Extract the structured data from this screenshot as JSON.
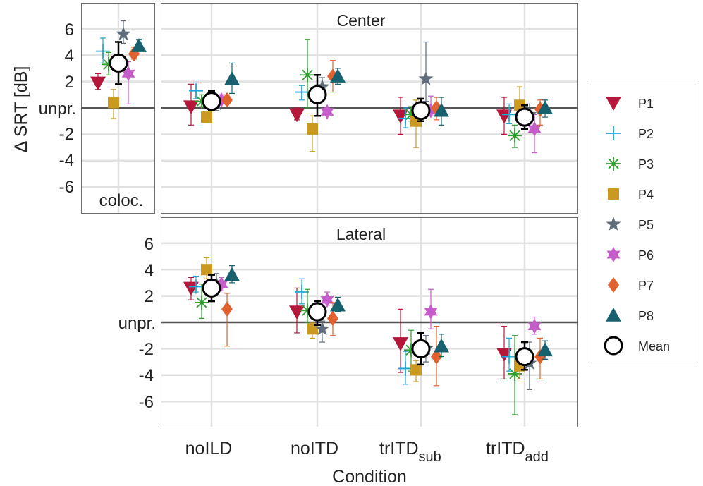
{
  "chart_data": [
    {
      "type": "scatter",
      "panel": "coloc",
      "categories": [
        "coloc."
      ],
      "ylabel": "Δ SRT [dB]",
      "ylim": [
        -7.8,
        7.8
      ],
      "yticks": [
        "6",
        "4",
        "2",
        "unpr.",
        "-2",
        "-4",
        "-6"
      ],
      "annotation": "coloc.",
      "series": [
        {
          "name": "P1",
          "values": [
            1.9
          ],
          "err": [
            [
              1.4,
              2.6
            ]
          ]
        },
        {
          "name": "P2",
          "values": [
            4.3
          ],
          "err": [
            [
              3.4,
              5.3
            ]
          ]
        },
        {
          "name": "P3",
          "values": [
            3.3
          ],
          "err": [
            [
              2.5,
              4.2
            ]
          ]
        },
        {
          "name": "P4",
          "values": [
            0.4
          ],
          "err": [
            [
              -0.8,
              1.4
            ]
          ]
        },
        {
          "name": "P5",
          "values": [
            5.6
          ],
          "err": [
            [
              4.9,
              6.6
            ]
          ]
        },
        {
          "name": "P6",
          "values": [
            2.6
          ],
          "err": [
            [
              0.3,
              3.5
            ]
          ]
        },
        {
          "name": "P7",
          "values": [
            4.1
          ],
          "err": [
            [
              3.7,
              4.6
            ]
          ]
        },
        {
          "name": "P8",
          "values": [
            4.7
          ],
          "err": [
            [
              4.3,
              5.2
            ]
          ]
        },
        {
          "name": "Mean",
          "values": [
            3.4
          ],
          "err": [
            [
              1.8,
              5.0
            ]
          ]
        }
      ]
    },
    {
      "type": "scatter",
      "panel": "center",
      "title": "Center",
      "categories": [
        "noILD",
        "noITD",
        "trITD_sub",
        "trITD_add"
      ],
      "ylim": [
        -7.8,
        7.8
      ],
      "series": [
        {
          "name": "P1",
          "values": [
            0.1,
            -0.5,
            -0.6,
            -0.6
          ],
          "err": [
            [
              -1.3,
              1.8
            ],
            [
              -0.9,
              0.0
            ],
            [
              -2.0,
              0.8
            ],
            [
              -2.0,
              0.8
            ]
          ]
        },
        {
          "name": "P2",
          "values": [
            1.3,
            1.2,
            -0.8,
            -0.5
          ],
          "err": [
            [
              0.7,
              1.9
            ],
            [
              0.6,
              1.7
            ],
            [
              -1.5,
              0.0
            ],
            [
              -1.2,
              0.3
            ]
          ]
        },
        {
          "name": "P3",
          "values": [
            0.5,
            2.5,
            -0.5,
            -2.1
          ],
          "err": [
            [
              0.1,
              1.0
            ],
            [
              0.0,
              5.2
            ],
            [
              -1.0,
              0.1
            ],
            [
              -3.0,
              -1.3
            ]
          ]
        },
        {
          "name": "P4",
          "values": [
            -0.7,
            -1.6,
            -1.0,
            0.2
          ],
          "err": [
            [
              -1.0,
              -0.4
            ],
            [
              -3.3,
              -0.6
            ],
            [
              -3.0,
              0.6
            ],
            [
              -0.5,
              1.6
            ]
          ]
        },
        {
          "name": "P5",
          "values": [
            0.3,
            1.6,
            2.2,
            -0.5
          ],
          "err": [
            [
              -0.2,
              0.9
            ],
            [
              1.0,
              2.3
            ],
            [
              0.5,
              5.0
            ],
            [
              -0.9,
              0.3
            ]
          ]
        },
        {
          "name": "P6",
          "values": [
            0.6,
            -0.3,
            -0.2,
            -1.6
          ],
          "err": [
            [
              0.3,
              1.0
            ],
            [
              -0.5,
              0.0
            ],
            [
              -0.6,
              0.9
            ],
            [
              -3.4,
              -0.5
            ]
          ]
        },
        {
          "name": "P7",
          "values": [
            0.6,
            2.4,
            0.0,
            -0.1
          ],
          "err": [
            [
              0.3,
              1.0
            ],
            [
              1.2,
              3.6
            ],
            [
              -0.9,
              0.8
            ],
            [
              -1.3,
              0.6
            ]
          ]
        },
        {
          "name": "P8",
          "values": [
            2.2,
            2.4,
            -0.2,
            0.0
          ],
          "err": [
            [
              1.1,
              3.4
            ],
            [
              1.8,
              3.0
            ],
            [
              -1.3,
              0.8
            ],
            [
              -0.7,
              0.6
            ]
          ]
        },
        {
          "name": "Mean",
          "values": [
            0.5,
            1.0,
            -0.2,
            -0.7
          ],
          "err": [
            [
              -0.2,
              1.3
            ],
            [
              -0.6,
              2.5
            ],
            [
              -1.0,
              0.7
            ],
            [
              -1.6,
              0.2
            ]
          ]
        }
      ]
    },
    {
      "type": "scatter",
      "panel": "lateral",
      "title": "Lateral",
      "xlabel": "Condition",
      "categories": [
        "noILD",
        "noITD",
        "trITD_sub",
        "trITD_add"
      ],
      "ylim": [
        -7.8,
        7.8
      ],
      "series": [
        {
          "name": "P1",
          "values": [
            2.6,
            0.8,
            -1.6,
            -2.4
          ],
          "err": [
            [
              1.7,
              3.4
            ],
            [
              -0.8,
              2.6
            ],
            [
              -3.8,
              1.0
            ],
            [
              -4.3,
              -0.3
            ]
          ]
        },
        {
          "name": "P2",
          "values": [
            2.7,
            2.3,
            -3.5,
            -2.6
          ],
          "err": [
            [
              2.3,
              3.5
            ],
            [
              1.4,
              3.3
            ],
            [
              -4.7,
              -2.2
            ],
            [
              -3.7,
              -1.2
            ]
          ]
        },
        {
          "name": "P3",
          "values": [
            1.5,
            0.9,
            -2.1,
            -3.9
          ],
          "err": [
            [
              0.3,
              2.9
            ],
            [
              0.0,
              2.5
            ],
            [
              -3.7,
              -0.6
            ],
            [
              -7.0,
              -1.0
            ]
          ]
        },
        {
          "name": "P4",
          "values": [
            4.0,
            -0.5,
            -3.6,
            -3.3
          ],
          "err": [
            [
              3.3,
              4.9
            ],
            [
              -1.2,
              0.0
            ],
            [
              -4.5,
              -2.9
            ],
            [
              -4.3,
              -2.4
            ]
          ]
        },
        {
          "name": "P5",
          "values": [
            2.9,
            -0.5,
            -2.0,
            -3.1
          ],
          "err": [
            [
              2.3,
              3.7
            ],
            [
              -1.5,
              0.1
            ],
            [
              -3.0,
              -1.0
            ],
            [
              -5.1,
              -1.5
            ]
          ]
        },
        {
          "name": "P6",
          "values": [
            2.9,
            1.7,
            0.8,
            -0.3
          ],
          "err": [
            [
              2.4,
              3.4
            ],
            [
              1.3,
              2.3
            ],
            [
              -0.5,
              2.5
            ],
            [
              -0.9,
              0.4
            ]
          ]
        },
        {
          "name": "P7",
          "values": [
            1.0,
            0.3,
            -2.6,
            -2.6
          ],
          "err": [
            [
              -1.8,
              2.2
            ],
            [
              -1.0,
              1.5
            ],
            [
              -4.8,
              -0.3
            ],
            [
              -4.3,
              -1.2
            ]
          ]
        },
        {
          "name": "P8",
          "values": [
            3.6,
            1.3,
            -1.8,
            -2.1
          ],
          "err": [
            [
              3.0,
              4.3
            ],
            [
              0.8,
              1.9
            ],
            [
              -2.6,
              -0.9
            ],
            [
              -2.8,
              -1.4
            ]
          ]
        },
        {
          "name": "Mean",
          "values": [
            2.6,
            0.8,
            -2.0,
            -2.6
          ],
          "err": [
            [
              1.6,
              3.6
            ],
            [
              -0.2,
              1.6
            ],
            [
              -3.2,
              -0.8
            ],
            [
              -3.6,
              -1.5
            ]
          ]
        }
      ]
    }
  ],
  "legend": [
    {
      "name": "P1",
      "label": "P1",
      "marker": "triangle-down",
      "color": "#B5173A"
    },
    {
      "name": "P2",
      "label": "P2",
      "marker": "plus",
      "color": "#1EA6D9"
    },
    {
      "name": "P3",
      "label": "P3",
      "marker": "asterisk",
      "color": "#2E9E2E"
    },
    {
      "name": "P4",
      "label": "P4",
      "marker": "square",
      "color": "#C99A1F"
    },
    {
      "name": "P5",
      "label": "P5",
      "marker": "star",
      "color": "#5D6B7A"
    },
    {
      "name": "P6",
      "label": "P6",
      "marker": "hexagram",
      "color": "#C45CC9"
    },
    {
      "name": "P7",
      "label": "P7",
      "marker": "diamond",
      "color": "#E0622F"
    },
    {
      "name": "P8",
      "label": "P8",
      "marker": "triangle-up",
      "color": "#17606E"
    },
    {
      "name": "Mean",
      "label": "Mean",
      "marker": "circle",
      "color": "#000000"
    }
  ],
  "xtick_labels": [
    {
      "main": "noILD",
      "sub": ""
    },
    {
      "main": "noITD",
      "sub": ""
    },
    {
      "main": "trITD",
      "sub": "sub"
    },
    {
      "main": "trITD",
      "sub": "add"
    }
  ],
  "labels": {
    "ylabel": "Δ SRT [dB]",
    "xlabel": "Condition",
    "center_title": "Center",
    "lateral_title": "Lateral",
    "coloc_label": "coloc."
  }
}
